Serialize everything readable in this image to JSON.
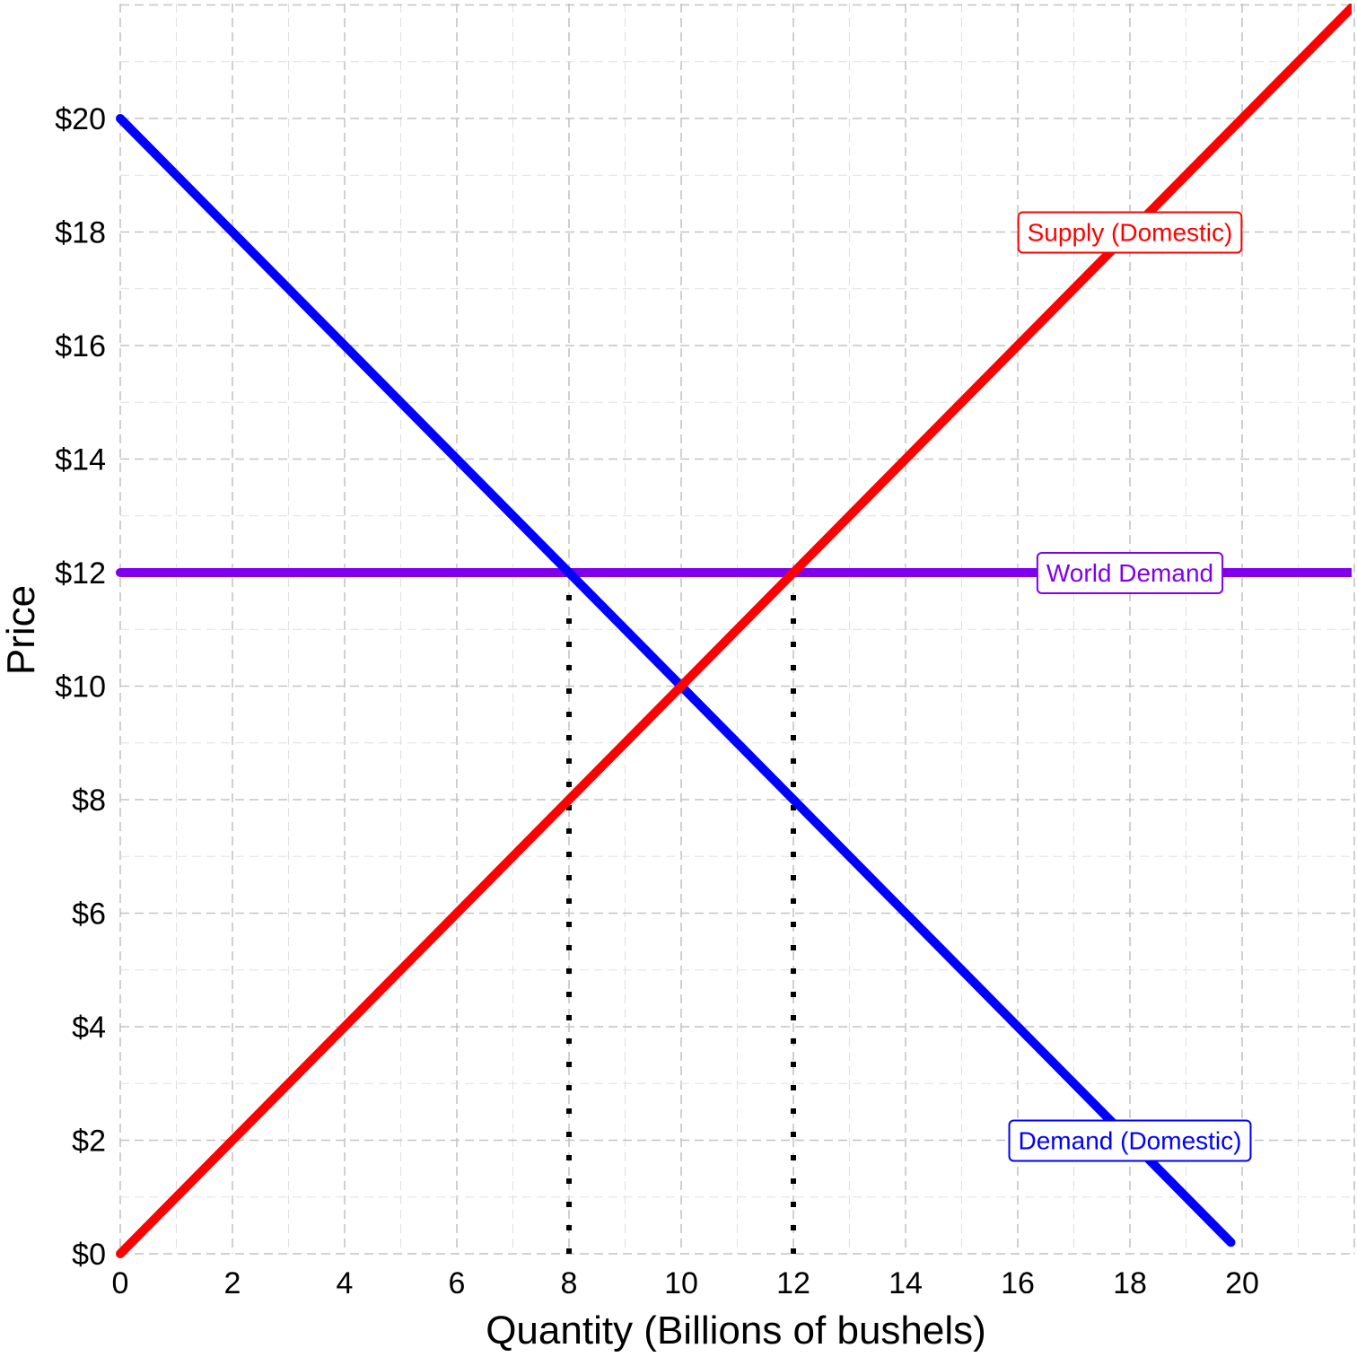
{
  "chart_data": {
    "type": "line",
    "xlabel": "Quantity (Billions of bushels)",
    "ylabel": "Price",
    "xlim": [
      0,
      22
    ],
    "ylim": [
      0,
      22
    ],
    "x_ticks": [
      0,
      2,
      4,
      6,
      8,
      10,
      12,
      14,
      16,
      18,
      20
    ],
    "x_tick_labels": [
      "0",
      "2",
      "4",
      "6",
      "8",
      "10",
      "12",
      "14",
      "16",
      "18",
      "20"
    ],
    "y_ticks": [
      0,
      2,
      4,
      6,
      8,
      10,
      12,
      14,
      16,
      18,
      20
    ],
    "y_tick_labels": [
      "$0",
      "$2",
      "$4",
      "$6",
      "$8",
      "$10",
      "$12",
      "$14",
      "$16",
      "$18",
      "$20"
    ],
    "grid": true,
    "series": [
      {
        "name": "Supply (Domestic)",
        "color": "#ff0000",
        "x": [
          0,
          22
        ],
        "y": [
          0,
          22
        ]
      },
      {
        "name": "Demand (Domestic)",
        "color": "#0000ff",
        "x": [
          0,
          19.8
        ],
        "y": [
          20,
          0.2
        ]
      },
      {
        "name": "World Demand",
        "color": "#8000ee",
        "x": [
          0,
          22
        ],
        "y": [
          12,
          12
        ]
      }
    ],
    "labels": [
      {
        "text": "Supply (Domestic)",
        "color": "#ff0000",
        "x": 18,
        "y": 18
      },
      {
        "text": "World Demand",
        "color": "#8000ee",
        "x": 18,
        "y": 12
      },
      {
        "text": "Demand (Domestic)",
        "color": "#0000ff",
        "x": 18,
        "y": 2
      }
    ],
    "reference_lines": [
      {
        "x": 8,
        "y_from": 0,
        "y_to": 12,
        "style": "dotted",
        "color": "#000000"
      },
      {
        "x": 12,
        "y_from": 0,
        "y_to": 12,
        "style": "dotted",
        "color": "#000000"
      }
    ]
  }
}
